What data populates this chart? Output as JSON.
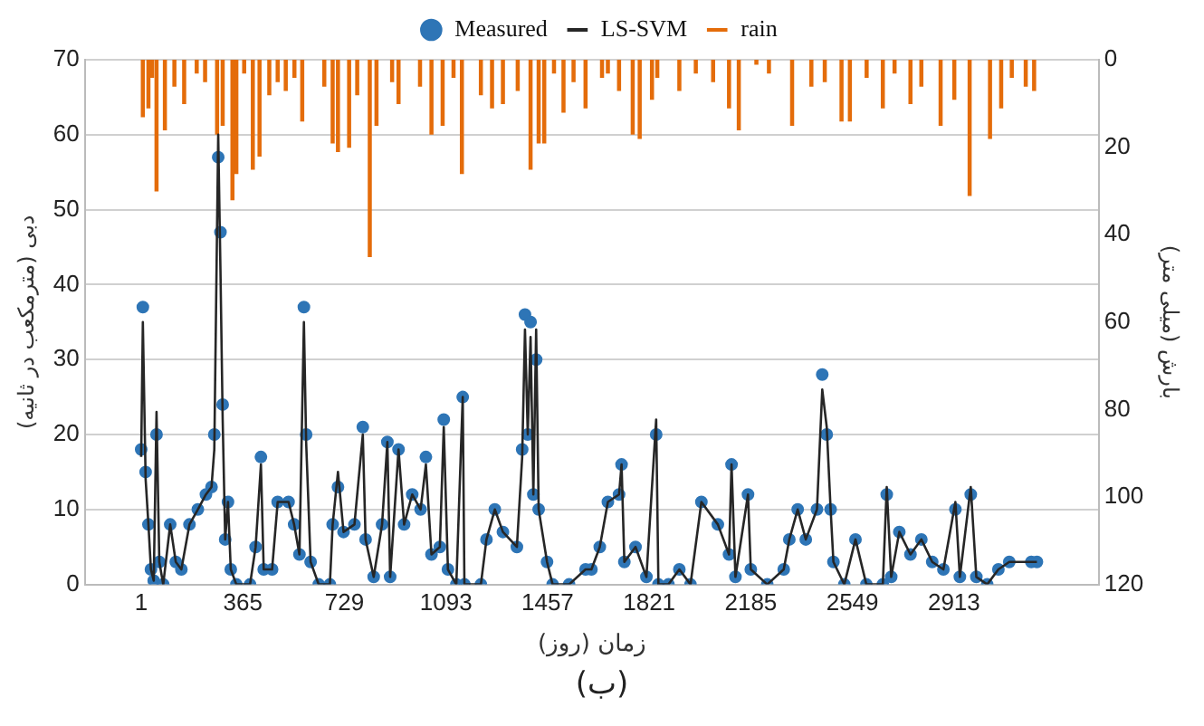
{
  "chart_data": {
    "type": "line",
    "xlabel": "زمان (روز)",
    "ylabel": "دبی (مترمکعب در ثانیه)",
    "y2label": "بارش (میلی متر)",
    "annotations": [
      "(ب)"
    ],
    "xlim": [
      1,
      3230
    ],
    "xticks": [
      1,
      365,
      729,
      1093,
      1457,
      1821,
      2185,
      2549,
      2913
    ],
    "ylim": [
      0,
      70
    ],
    "yticks": [
      0,
      10,
      20,
      30,
      40,
      50,
      60,
      70
    ],
    "y2lim": [
      120,
      0
    ],
    "y2ticks": [
      0,
      20,
      40,
      60,
      80,
      100,
      120
    ],
    "grid": "y",
    "legend": "top",
    "series": [
      {
        "name": "Measured",
        "type": "scatter",
        "marker": "circle",
        "color": "#2e75b6",
        "x": [
          1,
          7,
          17,
          27,
          36,
          46,
          56,
          66,
          80,
          105,
          125,
          145,
          174,
          204,
          233,
          253,
          263,
          277,
          285,
          293,
          302,
          312,
          322,
          342,
          391,
          411,
          430,
          440,
          470,
          490,
          529,
          549,
          568,
          584,
          592,
          608,
          637,
          677,
          687,
          706,
          726,
          765,
          795,
          805,
          834,
          864,
          883,
          893,
          923,
          943,
          972,
          1002,
          1021,
          1041,
          1071,
          1085,
          1100,
          1130,
          1153,
          1159,
          1218,
          1238,
          1268,
          1297,
          1347,
          1366,
          1376,
          1386,
          1396,
          1406,
          1416,
          1425,
          1455,
          1475,
          1534,
          1593,
          1614,
          1644,
          1673,
          1713,
          1722,
          1732,
          1772,
          1811,
          1846,
          1854,
          1890,
          1929,
          1969,
          2008,
          2067,
          2107,
          2116,
          2130,
          2175,
          2185,
          2244,
          2303,
          2323,
          2353,
          2382,
          2422,
          2441,
          2457,
          2471,
          2481,
          2520,
          2560,
          2599,
          2658,
          2672,
          2688,
          2717,
          2757,
          2796,
          2835,
          2875,
          2918,
          2934,
          2973,
          2993,
          3032,
          3072,
          3111,
          3190,
          3210
        ],
        "values": [
          18,
          37,
          15,
          8,
          2,
          0.5,
          20,
          3,
          0,
          8,
          3,
          2,
          8,
          10,
          12,
          13,
          20,
          57,
          47,
          24,
          6,
          11,
          2,
          0,
          0,
          5,
          17,
          2,
          2,
          11,
          11,
          8,
          4,
          37,
          20,
          3,
          0,
          0,
          8,
          13,
          7,
          8,
          21,
          6,
          1,
          8,
          19,
          1,
          18,
          8,
          12,
          10,
          17,
          4,
          5,
          22,
          2,
          0,
          25,
          0,
          0,
          6,
          10,
          7,
          5,
          18,
          36,
          20,
          35,
          12,
          30,
          10,
          3,
          0,
          0,
          2,
          2,
          5,
          11,
          12,
          16,
          3,
          5,
          1,
          20,
          0,
          0,
          2,
          0,
          11,
          8,
          4,
          16,
          1,
          12,
          2,
          0,
          2,
          6,
          10,
          6,
          10,
          28,
          20,
          10,
          3,
          0,
          6,
          0,
          0,
          12,
          1,
          7,
          4,
          6,
          3,
          2,
          10,
          1,
          12,
          1,
          0,
          2,
          3,
          3,
          3
        ]
      },
      {
        "name": "LS-SVM",
        "color": "#262626",
        "x": [
          1,
          7,
          17,
          27,
          36,
          46,
          56,
          66,
          80,
          105,
          125,
          145,
          174,
          204,
          233,
          253,
          263,
          277,
          285,
          293,
          302,
          312,
          322,
          342,
          391,
          411,
          430,
          440,
          470,
          490,
          529,
          549,
          568,
          584,
          592,
          608,
          637,
          677,
          687,
          706,
          726,
          765,
          795,
          805,
          834,
          864,
          883,
          893,
          923,
          943,
          972,
          1002,
          1021,
          1041,
          1071,
          1085,
          1100,
          1130,
          1153,
          1159,
          1218,
          1238,
          1268,
          1297,
          1347,
          1366,
          1376,
          1386,
          1396,
          1406,
          1416,
          1425,
          1455,
          1475,
          1534,
          1593,
          1614,
          1644,
          1673,
          1713,
          1722,
          1732,
          1772,
          1811,
          1846,
          1854,
          1890,
          1929,
          1969,
          2008,
          2067,
          2107,
          2116,
          2130,
          2175,
          2185,
          2244,
          2303,
          2323,
          2353,
          2382,
          2422,
          2441,
          2457,
          2471,
          2481,
          2520,
          2560,
          2599,
          2658,
          2672,
          2688,
          2717,
          2757,
          2796,
          2835,
          2875,
          2918,
          2934,
          2973,
          2993,
          3032,
          3072,
          3111,
          3190,
          3210
        ],
        "values": [
          17,
          35,
          14,
          8,
          2,
          0.5,
          23,
          3,
          0,
          8,
          3,
          2,
          8,
          10,
          12,
          13,
          18,
          60,
          42,
          22,
          6,
          11,
          2,
          0,
          0,
          5,
          16,
          2,
          2,
          11,
          11,
          8,
          4,
          35,
          19,
          3,
          0,
          0,
          8,
          15,
          7,
          8,
          20,
          6,
          1,
          8,
          19,
          1,
          18,
          8,
          12,
          10,
          16,
          4,
          5,
          21,
          2,
          0,
          25,
          0,
          0,
          6,
          10,
          7,
          5,
          17,
          34,
          20,
          33,
          12,
          34,
          10,
          3,
          0,
          0,
          2,
          2,
          5,
          11,
          12,
          16,
          3,
          5,
          1,
          22,
          0,
          0,
          2,
          0,
          11,
          8,
          4,
          16,
          1,
          12,
          2,
          0,
          2,
          6,
          10,
          6,
          10,
          26,
          21,
          10,
          3,
          0,
          6,
          0,
          0,
          13,
          1,
          7,
          4,
          6,
          3,
          2,
          11,
          1,
          13,
          1,
          0,
          2,
          3,
          3,
          3
        ]
      },
      {
        "name": "rain",
        "type": "bar",
        "axis": "y2",
        "color": "#e46c0a",
        "x": [
          7,
          27,
          40,
          56,
          86,
          120,
          155,
          200,
          230,
          273,
          293,
          328,
          342,
          370,
          401,
          425,
          460,
          490,
          519,
          550,
          578,
          657,
          687,
          706,
          746,
          775,
          820,
          844,
          900,
          923,
          1000,
          1041,
          1081,
          1120,
          1150,
          1218,
          1258,
          1297,
          1350,
          1396,
          1425,
          1445,
          1480,
          1514,
          1550,
          1593,
          1652,
          1673,
          1713,
          1762,
          1787,
          1831,
          1850,
          1929,
          1988,
          2050,
          2107,
          2142,
          2205,
          2250,
          2333,
          2402,
          2450,
          2510,
          2540,
          2600,
          2658,
          2700,
          2757,
          2796,
          2865,
          2914,
          2969,
          3042,
          3082,
          3120,
          3170,
          3200
        ],
        "values": [
          13,
          11,
          4,
          30,
          16,
          6,
          10,
          3,
          5,
          17,
          15,
          32,
          26,
          3,
          25,
          22,
          8,
          5,
          7,
          4,
          14,
          6,
          19,
          21,
          20,
          8,
          45,
          15,
          5,
          10,
          6,
          17,
          15,
          4,
          26,
          8,
          11,
          10,
          7,
          25,
          19,
          19,
          3,
          12,
          5,
          11,
          4,
          3,
          7,
          17,
          18,
          9,
          4,
          7,
          3,
          5,
          11,
          16,
          1,
          3,
          15,
          6,
          5,
          14,
          14,
          4,
          11,
          3,
          10,
          6,
          15,
          9,
          31,
          18,
          11,
          4,
          6,
          7
        ]
      }
    ]
  }
}
